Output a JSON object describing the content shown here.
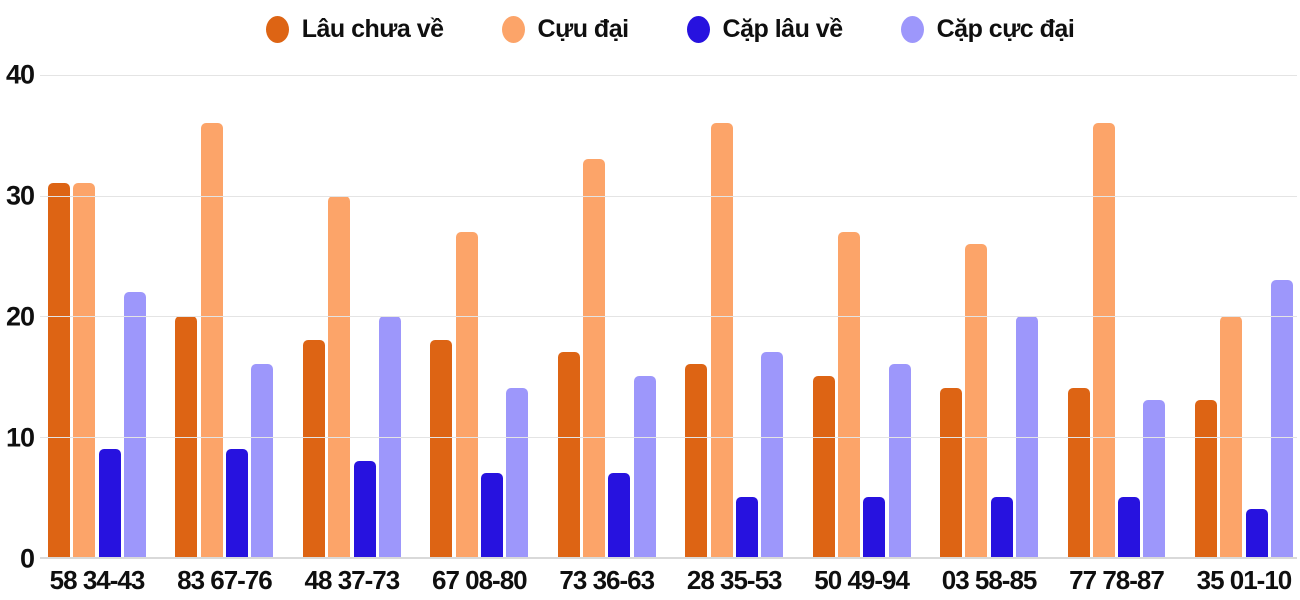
{
  "chart_data": {
    "type": "bar",
    "title": "",
    "xlabel": "",
    "ylabel": "",
    "ylim": [
      0,
      40
    ],
    "yticks": [
      0,
      10,
      20,
      30,
      40
    ],
    "grid": true,
    "legend_position": "top",
    "categories": [
      "58 34-43",
      "83 67-76",
      "48 37-73",
      "67 08-80",
      "73 36-63",
      "28 35-53",
      "50 49-94",
      "03 58-85",
      "77 78-87",
      "35 01-10"
    ],
    "series": [
      {
        "name": "Lâu chưa về",
        "color": "#DD6414",
        "values": [
          31,
          20,
          18,
          18,
          17,
          16,
          15,
          14,
          14,
          13
        ]
      },
      {
        "name": "Cựu đại",
        "color": "#FCA469",
        "values": [
          31,
          36,
          30,
          27,
          33,
          36,
          27,
          26,
          36,
          20
        ]
      },
      {
        "name": "Cặp lâu về",
        "color": "#2712DF",
        "values": [
          9,
          9,
          8,
          7,
          7,
          5,
          5,
          5,
          5,
          4
        ]
      },
      {
        "name": "Cặp cực đại",
        "color": "#9D97FB",
        "values": [
          22,
          16,
          20,
          14,
          15,
          17,
          16,
          20,
          13,
          23
        ]
      }
    ]
  },
  "colors": {
    "gridline": "#E4E4E4",
    "baseline": "#D9D9D9",
    "text": "#0F0F0F"
  }
}
